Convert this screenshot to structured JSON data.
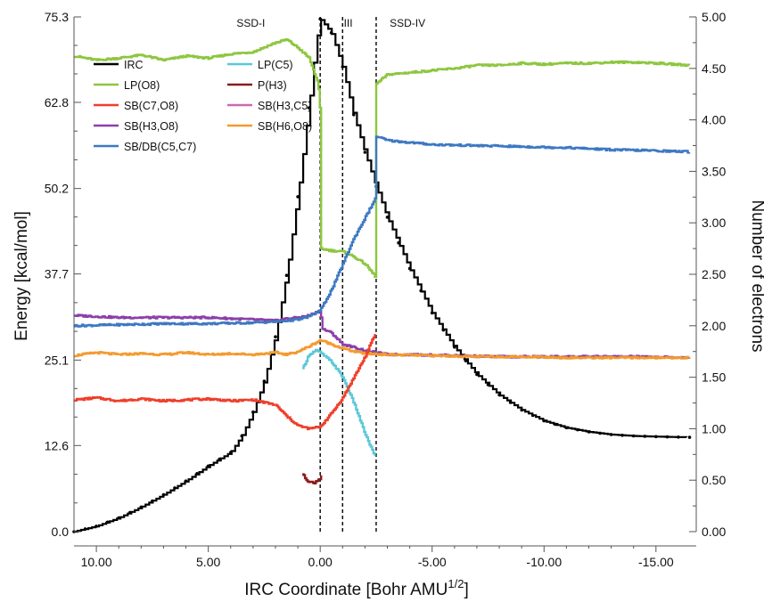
{
  "chart_data": {
    "type": "line",
    "xlabel": "IRC Coordinate [Bohr AMU",
    "xlabel_superscript": "1/2",
    "xlabel_suffix": "]",
    "ylabel_left": "Energy [kcal/mol]",
    "ylabel_right": "Number of electrons",
    "x_reversed": true,
    "xlim": [
      11,
      -16.8
    ],
    "ylim_left": [
      0,
      75.3
    ],
    "ylim_right": [
      0,
      5
    ],
    "x_ticks": [
      {
        "value": 10,
        "label": "10.00"
      },
      {
        "value": 5,
        "label": "5.00"
      },
      {
        "value": 0,
        "label": "0.00"
      },
      {
        "value": -5,
        "label": "-5.00"
      },
      {
        "value": -10,
        "label": "-10.00"
      },
      {
        "value": -15,
        "label": "-15.00"
      }
    ],
    "y_left_ticks": [
      {
        "value": 0,
        "label": "0.0"
      },
      {
        "value": 12.6,
        "label": "12.6"
      },
      {
        "value": 25.1,
        "label": "25.1"
      },
      {
        "value": 37.7,
        "label": "37.7"
      },
      {
        "value": 50.2,
        "label": "50.2"
      },
      {
        "value": 62.8,
        "label": "62.8"
      },
      {
        "value": 75.3,
        "label": "75.3"
      }
    ],
    "y_right_ticks": [
      {
        "value": 0,
        "label": "0.00"
      },
      {
        "value": 0.5,
        "label": "0.50"
      },
      {
        "value": 1.0,
        "label": "1.00"
      },
      {
        "value": 1.5,
        "label": "1.50"
      },
      {
        "value": 2.0,
        "label": "2.00"
      },
      {
        "value": 2.5,
        "label": "2.50"
      },
      {
        "value": 3.0,
        "label": "3.00"
      },
      {
        "value": 3.5,
        "label": "3.50"
      },
      {
        "value": 4.0,
        "label": "4.00"
      },
      {
        "value": 4.5,
        "label": "4.50"
      },
      {
        "value": 5.0,
        "label": "5.00"
      }
    ],
    "boundaries": [
      -1.0,
      0.0,
      -2.5
    ],
    "regions": [
      {
        "label": "SSD-I",
        "x": 3.1
      },
      {
        "label": "III",
        "x": -1.25
      },
      {
        "label": "SSD-IV",
        "x": -3.9
      }
    ],
    "legend": [
      {
        "label": "IRC",
        "color": "#000000"
      },
      {
        "label": "LP(C5)",
        "color": "#5bc8d8"
      },
      {
        "label": "LP(O8)",
        "color": "#8dc63f"
      },
      {
        "label": "P(H3)",
        "color": "#8b1a1a"
      },
      {
        "label": "SB(C7,O8)",
        "color": "#ee3e2a"
      },
      {
        "label": "SB(H3,C5)",
        "color": "#c86ab4"
      },
      {
        "label": "SB(H3,O8)",
        "color": "#8b3fa8"
      },
      {
        "label": "SB(H6,O8)",
        "color": "#f39a2e"
      },
      {
        "label": "SB/DB(C5,C7)",
        "color": "#3d78c2"
      }
    ],
    "series": [
      {
        "name": "IRC",
        "axis": "left",
        "color": "#000000",
        "width": 2.2,
        "markers": true,
        "step": true,
        "points": [
          [
            11,
            0
          ],
          [
            10,
            0.8
          ],
          [
            9,
            2.0
          ],
          [
            8,
            3.6
          ],
          [
            7,
            5.4
          ],
          [
            6,
            7.4
          ],
          [
            5,
            9.6
          ],
          [
            4,
            11.6
          ],
          [
            3.5,
            14.0
          ],
          [
            3,
            17.5
          ],
          [
            2.5,
            22.0
          ],
          [
            2,
            28.5
          ],
          [
            1.5,
            37.5
          ],
          [
            1,
            49.0
          ],
          [
            0.5,
            62.0
          ],
          [
            0.2,
            71.0
          ],
          [
            0,
            75.0
          ],
          [
            -0.5,
            73.0
          ],
          [
            -1,
            68.0
          ],
          [
            -1.5,
            61.0
          ],
          [
            -2,
            55.5
          ],
          [
            -2.5,
            50.5
          ],
          [
            -3,
            46.0
          ],
          [
            -4,
            38.5
          ],
          [
            -5,
            32.0
          ],
          [
            -6,
            27.0
          ],
          [
            -7,
            23.0
          ],
          [
            -8,
            20.0
          ],
          [
            -9,
            17.8
          ],
          [
            -10,
            16.2
          ],
          [
            -11,
            15.2
          ],
          [
            -12,
            14.6
          ],
          [
            -13,
            14.2
          ],
          [
            -14,
            14.0
          ],
          [
            -15,
            13.9
          ],
          [
            -16.5,
            13.8
          ]
        ]
      },
      {
        "name": "LP(O8)",
        "axis": "right",
        "color": "#8dc63f",
        "width": 2.4,
        "points": [
          [
            11,
            4.62
          ],
          [
            10,
            4.58
          ],
          [
            9,
            4.6
          ],
          [
            8,
            4.63
          ],
          [
            7,
            4.58
          ],
          [
            6,
            4.62
          ],
          [
            5,
            4.6
          ],
          [
            4,
            4.64
          ],
          [
            3,
            4.66
          ],
          [
            2,
            4.75
          ],
          [
            1.5,
            4.78
          ],
          [
            1,
            4.7
          ],
          [
            0.5,
            4.6
          ],
          [
            0.1,
            4.35
          ],
          [
            0,
            4.05
          ],
          [
            -0.01,
            2.75
          ],
          [
            -0.5,
            2.73
          ],
          [
            -1,
            2.72
          ],
          [
            -1.5,
            2.67
          ],
          [
            -2,
            2.6
          ],
          [
            -2.49,
            2.47
          ],
          [
            -2.5,
            4.35
          ],
          [
            -3,
            4.44
          ],
          [
            -4,
            4.46
          ],
          [
            -5,
            4.48
          ],
          [
            -6,
            4.5
          ],
          [
            -7,
            4.53
          ],
          [
            -8,
            4.53
          ],
          [
            -9,
            4.55
          ],
          [
            -10,
            4.54
          ],
          [
            -11,
            4.55
          ],
          [
            -12,
            4.55
          ],
          [
            -13,
            4.56
          ],
          [
            -14,
            4.56
          ],
          [
            -15,
            4.55
          ],
          [
            -16.5,
            4.53
          ]
        ]
      },
      {
        "name": "SB(H3,O8)",
        "axis": "right",
        "color": "#8b3fa8",
        "width": 2.4,
        "points": [
          [
            11,
            2.1
          ],
          [
            9,
            2.08
          ],
          [
            7,
            2.08
          ],
          [
            5,
            2.08
          ],
          [
            3,
            2.06
          ],
          [
            2,
            2.05
          ],
          [
            1.5,
            2.07
          ],
          [
            1,
            2.08
          ],
          [
            0.5,
            2.1
          ],
          [
            0,
            2.15
          ],
          [
            -0.1,
            1.97
          ],
          [
            -0.5,
            1.93
          ],
          [
            -1,
            1.82
          ],
          [
            -2,
            1.76
          ],
          [
            -3,
            1.72
          ],
          [
            -4,
            1.72
          ],
          [
            -6,
            1.71
          ],
          [
            -8,
            1.7
          ],
          [
            -10,
            1.7
          ],
          [
            -12,
            1.7
          ],
          [
            -14,
            1.7
          ],
          [
            -16.5,
            1.69
          ]
        ]
      },
      {
        "name": "SB/DB(C5,C7)",
        "axis": "right",
        "color": "#3d78c2",
        "width": 2.4,
        "points": [
          [
            11,
            2.0
          ],
          [
            9,
            2.01
          ],
          [
            7,
            2.02
          ],
          [
            5,
            2.02
          ],
          [
            3,
            2.03
          ],
          [
            2,
            2.04
          ],
          [
            1,
            2.06
          ],
          [
            0.5,
            2.09
          ],
          [
            0,
            2.15
          ],
          [
            -0.5,
            2.35
          ],
          [
            -1,
            2.6
          ],
          [
            -1.5,
            2.85
          ],
          [
            -2,
            3.05
          ],
          [
            -2.49,
            3.25
          ],
          [
            -2.5,
            3.84
          ],
          [
            -3,
            3.8
          ],
          [
            -4,
            3.78
          ],
          [
            -5,
            3.76
          ],
          [
            -7,
            3.75
          ],
          [
            -9,
            3.74
          ],
          [
            -11,
            3.73
          ],
          [
            -13,
            3.71
          ],
          [
            -15,
            3.7
          ],
          [
            -16.5,
            3.69
          ]
        ]
      },
      {
        "name": "SB(H6,O8)",
        "axis": "right",
        "color": "#f39a2e",
        "width": 2.4,
        "points": [
          [
            11,
            1.71
          ],
          [
            10,
            1.74
          ],
          [
            9,
            1.72
          ],
          [
            8,
            1.73
          ],
          [
            7,
            1.72
          ],
          [
            6,
            1.74
          ],
          [
            5,
            1.72
          ],
          [
            4,
            1.73
          ],
          [
            3,
            1.72
          ],
          [
            2,
            1.74
          ],
          [
            1.5,
            1.72
          ],
          [
            1,
            1.75
          ],
          [
            0.5,
            1.8
          ],
          [
            0,
            1.86
          ],
          [
            -0.5,
            1.82
          ],
          [
            -1,
            1.78
          ],
          [
            -1.5,
            1.75
          ],
          [
            -2,
            1.73
          ],
          [
            -3,
            1.72
          ],
          [
            -5,
            1.71
          ],
          [
            -7,
            1.7
          ],
          [
            -9,
            1.7
          ],
          [
            -11,
            1.69
          ],
          [
            -13,
            1.69
          ],
          [
            -15,
            1.69
          ],
          [
            -16.5,
            1.69
          ]
        ]
      },
      {
        "name": "LP(C5)",
        "axis": "right",
        "color": "#5bc8d8",
        "width": 2.4,
        "points": [
          [
            0.8,
            1.58
          ],
          [
            0.5,
            1.72
          ],
          [
            0.2,
            1.76
          ],
          [
            0,
            1.74
          ],
          [
            -0.5,
            1.65
          ],
          [
            -1,
            1.5
          ],
          [
            -1.5,
            1.25
          ],
          [
            -2,
            0.95
          ],
          [
            -2.5,
            0.7
          ]
        ]
      },
      {
        "name": "SB(C7,O8)",
        "axis": "right",
        "color": "#ee3e2a",
        "width": 2.4,
        "points": [
          [
            11,
            1.28
          ],
          [
            10,
            1.3
          ],
          [
            9,
            1.27
          ],
          [
            8,
            1.29
          ],
          [
            7,
            1.27
          ],
          [
            6,
            1.28
          ],
          [
            5,
            1.29
          ],
          [
            4,
            1.27
          ],
          [
            3,
            1.28
          ],
          [
            2,
            1.23
          ],
          [
            1.5,
            1.12
          ],
          [
            1,
            1.03
          ],
          [
            0.5,
            1.0
          ],
          [
            0,
            1.02
          ],
          [
            -0.5,
            1.15
          ],
          [
            -1,
            1.3
          ],
          [
            -1.5,
            1.5
          ],
          [
            -2,
            1.7
          ],
          [
            -2.5,
            1.95
          ]
        ]
      },
      {
        "name": "P(H3)",
        "axis": "right",
        "color": "#8b1a1a",
        "width": 2.4,
        "points": [
          [
            0.8,
            0.56
          ],
          [
            0.6,
            0.5
          ],
          [
            0.3,
            0.47
          ],
          [
            0,
            0.52
          ],
          [
            -0.05,
            0.56
          ]
        ]
      }
    ]
  }
}
